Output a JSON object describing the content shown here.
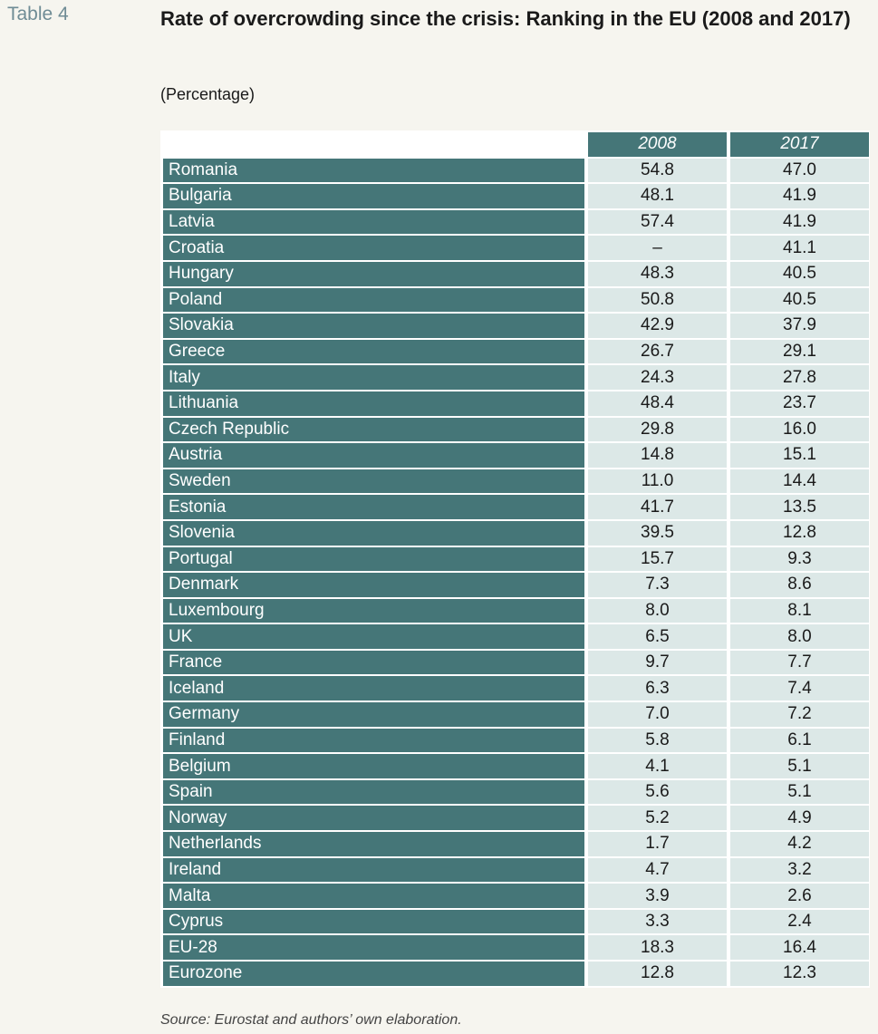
{
  "table_label": "Table 4",
  "title": "Rate of overcrowding since the crisis: Ranking in the EU (2008 and 2017)",
  "subtitle": "(Percentage)",
  "columns": [
    "2008",
    "2017"
  ],
  "rows": [
    {
      "country": "Romania",
      "v2008": "54.8",
      "v2017": "47.0"
    },
    {
      "country": "Bulgaria",
      "v2008": "48.1",
      "v2017": "41.9"
    },
    {
      "country": "Latvia",
      "v2008": "57.4",
      "v2017": "41.9"
    },
    {
      "country": "Croatia",
      "v2008": "–",
      "v2017": "41.1"
    },
    {
      "country": "Hungary",
      "v2008": "48.3",
      "v2017": "40.5"
    },
    {
      "country": "Poland",
      "v2008": "50.8",
      "v2017": "40.5"
    },
    {
      "country": "Slovakia",
      "v2008": "42.9",
      "v2017": "37.9"
    },
    {
      "country": "Greece",
      "v2008": "26.7",
      "v2017": "29.1"
    },
    {
      "country": "Italy",
      "v2008": "24.3",
      "v2017": "27.8"
    },
    {
      "country": "Lithuania",
      "v2008": "48.4",
      "v2017": "23.7"
    },
    {
      "country": "Czech Republic",
      "v2008": "29.8",
      "v2017": "16.0"
    },
    {
      "country": "Austria",
      "v2008": "14.8",
      "v2017": "15.1"
    },
    {
      "country": "Sweden",
      "v2008": "11.0",
      "v2017": "14.4"
    },
    {
      "country": "Estonia",
      "v2008": "41.7",
      "v2017": "13.5"
    },
    {
      "country": "Slovenia",
      "v2008": "39.5",
      "v2017": "12.8"
    },
    {
      "country": "Portugal",
      "v2008": "15.7",
      "v2017": "9.3"
    },
    {
      "country": "Denmark",
      "v2008": "7.3",
      "v2017": "8.6"
    },
    {
      "country": "Luxembourg",
      "v2008": "8.0",
      "v2017": "8.1"
    },
    {
      "country": "UK",
      "v2008": "6.5",
      "v2017": "8.0"
    },
    {
      "country": "France",
      "v2008": "9.7",
      "v2017": "7.7"
    },
    {
      "country": "Iceland",
      "v2008": "6.3",
      "v2017": "7.4"
    },
    {
      "country": "Germany",
      "v2008": "7.0",
      "v2017": "7.2"
    },
    {
      "country": "Finland",
      "v2008": "5.8",
      "v2017": "6.1"
    },
    {
      "country": "Belgium",
      "v2008": "4.1",
      "v2017": "5.1"
    },
    {
      "country": "Spain",
      "v2008": "5.6",
      "v2017": "5.1"
    },
    {
      "country": "Norway",
      "v2008": "5.2",
      "v2017": "4.9"
    },
    {
      "country": "Netherlands",
      "v2008": "1.7",
      "v2017": "4.2"
    },
    {
      "country": "Ireland",
      "v2008": "4.7",
      "v2017": "3.2"
    },
    {
      "country": "Malta",
      "v2008": "3.9",
      "v2017": "2.6"
    },
    {
      "country": "Cyprus",
      "v2008": "3.3",
      "v2017": "2.4"
    },
    {
      "country": "EU-28",
      "v2008": "18.3",
      "v2017": "16.4"
    },
    {
      "country": "Eurozone",
      "v2008": "12.8",
      "v2017": "12.3"
    }
  ],
  "source": "Source: Eurostat and authors’ own elaboration.",
  "colors": {
    "header_bg": "#457678",
    "value_bg": "#dce8e7",
    "label_color": "#6f8c95",
    "page_bg": "#f6f5ef"
  }
}
